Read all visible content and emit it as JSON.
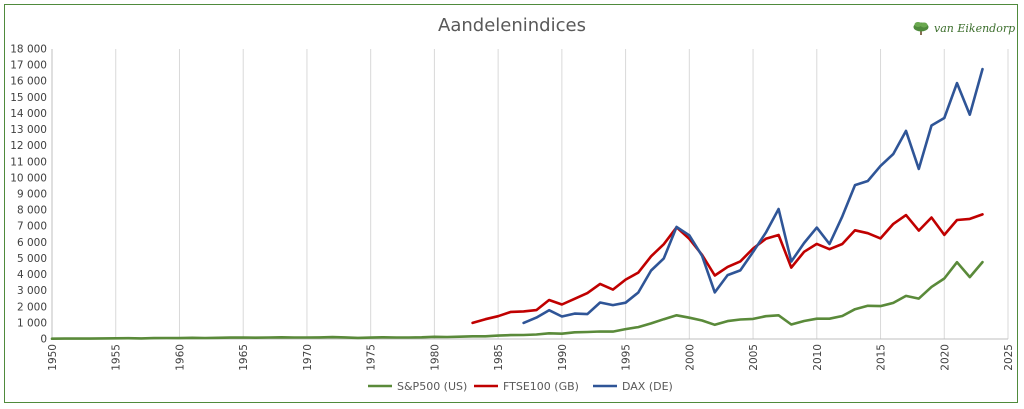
{
  "chart_data": {
    "type": "line",
    "title": "Aandelenindices",
    "logo_text": "van Eikendorp",
    "xlim": [
      1950,
      2025
    ],
    "ylim": [
      0,
      18000
    ],
    "x_ticks": [
      1950,
      1955,
      1960,
      1965,
      1970,
      1975,
      1980,
      1985,
      1990,
      1995,
      2000,
      2005,
      2010,
      2015,
      2020,
      2025
    ],
    "y_ticks": [
      {
        "value": 0,
        "label": "0"
      },
      {
        "value": 1000,
        "label": "1 000"
      },
      {
        "value": 2000,
        "label": "2 000"
      },
      {
        "value": 3000,
        "label": "3 000"
      },
      {
        "value": 4000,
        "label": "4 000"
      },
      {
        "value": 5000,
        "label": "5 000"
      },
      {
        "value": 6000,
        "label": "6 000"
      },
      {
        "value": 7000,
        "label": "7 000"
      },
      {
        "value": 8000,
        "label": "8 000"
      },
      {
        "value": 9000,
        "label": "9 000"
      },
      {
        "value": 10000,
        "label": "10 000"
      },
      {
        "value": 11000,
        "label": "11 000"
      },
      {
        "value": 12000,
        "label": "12 000"
      },
      {
        "value": 13000,
        "label": "13 000"
      },
      {
        "value": 14000,
        "label": "14 000"
      },
      {
        "value": 15000,
        "label": "15 000"
      },
      {
        "value": 16000,
        "label": "16 000"
      },
      {
        "value": 17000,
        "label": "17 000"
      },
      {
        "value": 18000,
        "label": "18 000"
      }
    ],
    "grid": "vertical",
    "legend_position": "bottom",
    "series": [
      {
        "name": "S&P500 (US)",
        "color": "#5a8a3a",
        "points": [
          [
            1950,
            20
          ],
          [
            1951,
            24
          ],
          [
            1952,
            27
          ],
          [
            1953,
            25
          ],
          [
            1954,
            36
          ],
          [
            1955,
            45
          ],
          [
            1956,
            47
          ],
          [
            1957,
            40
          ],
          [
            1958,
            55
          ],
          [
            1959,
            60
          ],
          [
            1960,
            58
          ],
          [
            1961,
            72
          ],
          [
            1962,
            63
          ],
          [
            1963,
            75
          ],
          [
            1964,
            85
          ],
          [
            1965,
            92
          ],
          [
            1966,
            80
          ],
          [
            1967,
            96
          ],
          [
            1968,
            104
          ],
          [
            1969,
            92
          ],
          [
            1970,
            92
          ],
          [
            1971,
            102
          ],
          [
            1972,
            118
          ],
          [
            1973,
            97
          ],
          [
            1974,
            69
          ],
          [
            1975,
            90
          ],
          [
            1976,
            107
          ],
          [
            1977,
            95
          ],
          [
            1978,
            96
          ],
          [
            1979,
            108
          ],
          [
            1980,
            136
          ],
          [
            1981,
            122
          ],
          [
            1982,
            141
          ],
          [
            1983,
            165
          ],
          [
            1984,
            167
          ],
          [
            1985,
            211
          ],
          [
            1986,
            242
          ],
          [
            1987,
            247
          ],
          [
            1988,
            278
          ],
          [
            1989,
            353
          ],
          [
            1990,
            330
          ],
          [
            1991,
            417
          ],
          [
            1992,
            436
          ],
          [
            1993,
            466
          ],
          [
            1994,
            459
          ],
          [
            1995,
            616
          ],
          [
            1996,
            741
          ],
          [
            1997,
            970
          ],
          [
            1998,
            1229
          ],
          [
            1999,
            1469
          ],
          [
            2000,
            1320
          ],
          [
            2001,
            1148
          ],
          [
            2002,
            880
          ],
          [
            2003,
            1112
          ],
          [
            2004,
            1212
          ],
          [
            2005,
            1248
          ],
          [
            2006,
            1418
          ],
          [
            2007,
            1468
          ],
          [
            2008,
            903
          ],
          [
            2009,
            1115
          ],
          [
            2010,
            1258
          ],
          [
            2011,
            1258
          ],
          [
            2012,
            1426
          ],
          [
            2013,
            1848
          ],
          [
            2014,
            2059
          ],
          [
            2015,
            2044
          ],
          [
            2016,
            2239
          ],
          [
            2017,
            2674
          ],
          [
            2018,
            2507
          ],
          [
            2019,
            3231
          ],
          [
            2020,
            3756
          ],
          [
            2021,
            4766
          ],
          [
            2022,
            3840
          ],
          [
            2023,
            4770
          ]
        ]
      },
      {
        "name": "FTSE100 (GB)",
        "color": "#c00000",
        "points": [
          [
            1983,
            1000
          ],
          [
            1984,
            1230
          ],
          [
            1985,
            1413
          ],
          [
            1986,
            1679
          ],
          [
            1987,
            1713
          ],
          [
            1988,
            1793
          ],
          [
            1989,
            2423
          ],
          [
            1990,
            2143
          ],
          [
            1991,
            2493
          ],
          [
            1992,
            2847
          ],
          [
            1993,
            3418
          ],
          [
            1994,
            3066
          ],
          [
            1995,
            3689
          ],
          [
            1996,
            4119
          ],
          [
            1997,
            5136
          ],
          [
            1998,
            5883
          ],
          [
            1999,
            6930
          ],
          [
            2000,
            6222
          ],
          [
            2001,
            5217
          ],
          [
            2002,
            3940
          ],
          [
            2003,
            4477
          ],
          [
            2004,
            4814
          ],
          [
            2005,
            5619
          ],
          [
            2006,
            6221
          ],
          [
            2007,
            6457
          ],
          [
            2008,
            4434
          ],
          [
            2009,
            5413
          ],
          [
            2010,
            5900
          ],
          [
            2011,
            5572
          ],
          [
            2012,
            5898
          ],
          [
            2013,
            6749
          ],
          [
            2014,
            6566
          ],
          [
            2015,
            6242
          ],
          [
            2016,
            7143
          ],
          [
            2017,
            7688
          ],
          [
            2018,
            6728
          ],
          [
            2019,
            7542
          ],
          [
            2020,
            6461
          ],
          [
            2021,
            7385
          ],
          [
            2022,
            7452
          ],
          [
            2023,
            7733
          ]
        ]
      },
      {
        "name": "DAX (DE)",
        "color": "#2f5597",
        "points": [
          [
            1987,
            1000
          ],
          [
            1988,
            1328
          ],
          [
            1989,
            1790
          ],
          [
            1990,
            1398
          ],
          [
            1991,
            1578
          ],
          [
            1992,
            1545
          ],
          [
            1993,
            2267
          ],
          [
            1994,
            2107
          ],
          [
            1995,
            2254
          ],
          [
            1996,
            2889
          ],
          [
            1997,
            4250
          ],
          [
            1998,
            5002
          ],
          [
            1999,
            6958
          ],
          [
            2000,
            6434
          ],
          [
            2001,
            5160
          ],
          [
            2002,
            2893
          ],
          [
            2003,
            3965
          ],
          [
            2004,
            4256
          ],
          [
            2005,
            5408
          ],
          [
            2006,
            6597
          ],
          [
            2007,
            8067
          ],
          [
            2008,
            4810
          ],
          [
            2009,
            5957
          ],
          [
            2010,
            6914
          ],
          [
            2011,
            5898
          ],
          [
            2012,
            7612
          ],
          [
            2013,
            9552
          ],
          [
            2014,
            9806
          ],
          [
            2015,
            10743
          ],
          [
            2016,
            11481
          ],
          [
            2017,
            12918
          ],
          [
            2018,
            10559
          ],
          [
            2019,
            13249
          ],
          [
            2020,
            13719
          ],
          [
            2021,
            15885
          ],
          [
            2022,
            13924
          ],
          [
            2023,
            16752
          ]
        ]
      }
    ]
  }
}
